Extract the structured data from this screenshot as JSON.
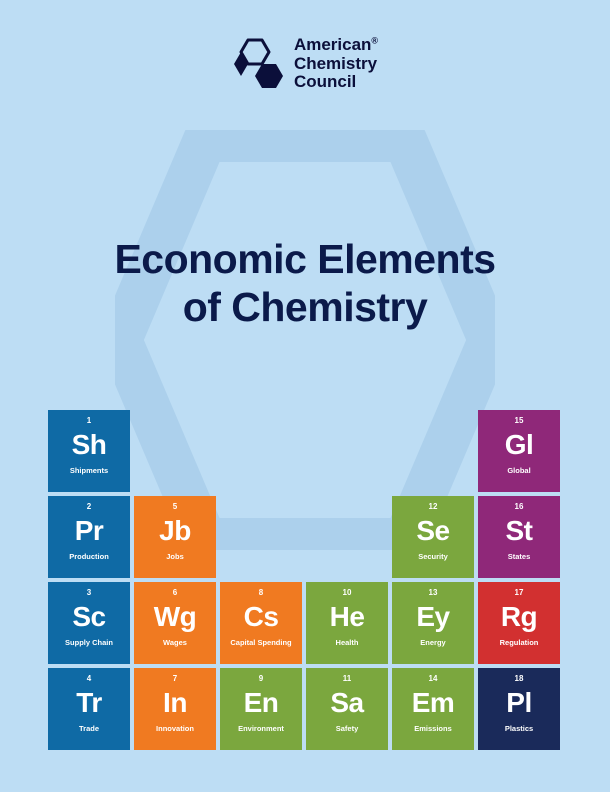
{
  "logo": {
    "line1": "American",
    "line2": "Chemistry",
    "line3": "Council",
    "reg": "®"
  },
  "title": {
    "line1": "Economic Elements",
    "line2": "of Chemistry"
  },
  "colors": {
    "blue": "#0f6aa5",
    "orange": "#f07a21",
    "green": "#7ba73e",
    "purple": "#8f2879",
    "red": "#d23030",
    "navy": "#1a2a5a",
    "page_bg": "#bdddf4",
    "bg_hex_stroke": "#95bfe2",
    "title_color": "#0b1a4a",
    "logo_color": "#0b0f3a"
  },
  "cells": [
    {
      "num": "1",
      "sym": "Sh",
      "lab": "Shipments",
      "color": "blue",
      "col": 1,
      "row": 1
    },
    {
      "num": "15",
      "sym": "Gl",
      "lab": "Global",
      "color": "purple",
      "col": 6,
      "row": 1
    },
    {
      "num": "2",
      "sym": "Pr",
      "lab": "Production",
      "color": "blue",
      "col": 1,
      "row": 2
    },
    {
      "num": "5",
      "sym": "Jb",
      "lab": "Jobs",
      "color": "orange",
      "col": 2,
      "row": 2
    },
    {
      "num": "12",
      "sym": "Se",
      "lab": "Security",
      "color": "green",
      "col": 5,
      "row": 2
    },
    {
      "num": "16",
      "sym": "St",
      "lab": "States",
      "color": "purple",
      "col": 6,
      "row": 2
    },
    {
      "num": "3",
      "sym": "Sc",
      "lab": "Supply Chain",
      "color": "blue",
      "col": 1,
      "row": 3
    },
    {
      "num": "6",
      "sym": "Wg",
      "lab": "Wages",
      "color": "orange",
      "col": 2,
      "row": 3
    },
    {
      "num": "8",
      "sym": "Cs",
      "lab": "Capital Spending",
      "color": "orange",
      "col": 3,
      "row": 3
    },
    {
      "num": "10",
      "sym": "He",
      "lab": "Health",
      "color": "green",
      "col": 4,
      "row": 3
    },
    {
      "num": "13",
      "sym": "Ey",
      "lab": "Energy",
      "color": "green",
      "col": 5,
      "row": 3
    },
    {
      "num": "17",
      "sym": "Rg",
      "lab": "Regulation",
      "color": "red",
      "col": 6,
      "row": 3
    },
    {
      "num": "4",
      "sym": "Tr",
      "lab": "Trade",
      "color": "blue",
      "col": 1,
      "row": 4
    },
    {
      "num": "7",
      "sym": "In",
      "lab": "Innovation",
      "color": "orange",
      "col": 2,
      "row": 4
    },
    {
      "num": "9",
      "sym": "En",
      "lab": "Environment",
      "color": "green",
      "col": 3,
      "row": 4
    },
    {
      "num": "11",
      "sym": "Sa",
      "lab": "Safety",
      "color": "green",
      "col": 4,
      "row": 4
    },
    {
      "num": "14",
      "sym": "Em",
      "lab": "Emissions",
      "color": "green",
      "col": 5,
      "row": 4
    },
    {
      "num": "18",
      "sym": "Pl",
      "lab": "Plastics",
      "color": "navy",
      "col": 6,
      "row": 4
    }
  ]
}
